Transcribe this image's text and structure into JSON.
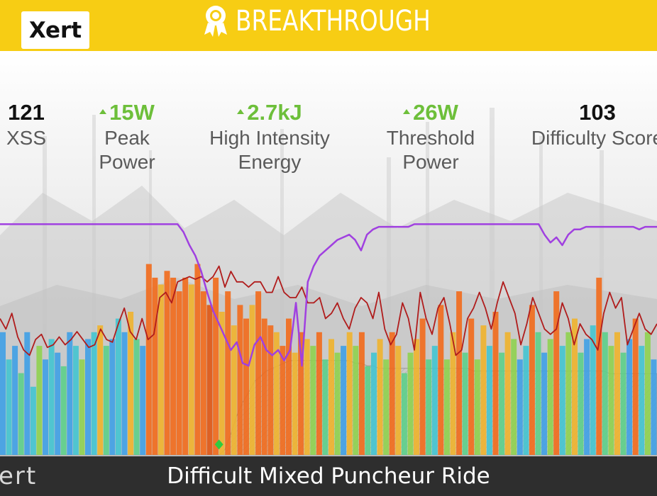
{
  "header": {
    "logo": "Xert",
    "title": "BREAKTHROUGH",
    "icon": "award-ribbon-icon",
    "colors": {
      "banner": "#f7cd14",
      "text": "#ffffff"
    }
  },
  "stats": [
    {
      "value": "121",
      "label_line1": "XSS",
      "label_line2": "",
      "trend": "none",
      "color": "#111111"
    },
    {
      "value": "15W",
      "label_line1": "Peak",
      "label_line2": "Power",
      "trend": "up",
      "color": "#6dbf3a"
    },
    {
      "value": "2.7kJ",
      "label_line1": "High Intensity",
      "label_line2": "Energy",
      "trend": "up",
      "color": "#6dbf3a"
    },
    {
      "value": "26W",
      "label_line1": "Threshold",
      "label_line2": "Power",
      "trend": "up",
      "color": "#6dbf3a"
    },
    {
      "value": "103",
      "label_line1": "Difficulty Score",
      "label_line2": "",
      "trend": "none",
      "color": "#111111"
    }
  ],
  "chart_data": {
    "type": "line",
    "series": [
      {
        "color": "#b01c1c",
        "values": [
          52,
          48,
          54,
          45,
          40,
          38,
          44,
          46,
          41,
          42,
          45,
          42,
          44,
          47,
          44,
          41,
          42,
          48,
          44,
          43,
          50,
          56,
          47,
          44,
          52,
          44,
          46,
          60,
          62,
          58,
          66,
          67,
          68,
          67,
          68,
          66,
          68,
          72,
          64,
          70,
          66,
          66,
          64,
          66,
          66,
          62,
          62,
          68,
          62,
          60,
          60,
          64,
          58,
          58,
          60,
          52,
          54,
          58,
          52,
          48,
          56,
          60,
          58,
          52,
          62,
          48,
          42,
          46,
          58,
          52,
          40,
          62,
          52,
          46,
          56,
          60,
          50,
          38,
          40,
          52,
          56,
          62,
          56,
          48,
          58,
          66,
          60,
          54,
          42,
          50,
          60,
          54,
          48,
          46,
          48,
          58,
          52,
          42,
          50,
          46,
          44,
          40,
          54,
          62,
          56,
          60,
          42,
          48,
          54,
          48,
          46,
          50
        ]
      },
      {
        "color": "#a040e0",
        "values": [
          88,
          88,
          88,
          88,
          88,
          88,
          88,
          88,
          88,
          88,
          88,
          88,
          88,
          88,
          88,
          88,
          88,
          88,
          88,
          88,
          88,
          88,
          88,
          88,
          88,
          88,
          88,
          88,
          88,
          88,
          88,
          85,
          80,
          76,
          70,
          62,
          55,
          50,
          45,
          40,
          43,
          35,
          34,
          42,
          45,
          40,
          38,
          40,
          36,
          40,
          58,
          34,
          66,
          72,
          76,
          78,
          80,
          82,
          83,
          84,
          82,
          78,
          84,
          86,
          87,
          87,
          87,
          87,
          87,
          87,
          88,
          88,
          88,
          88,
          88,
          88,
          88,
          88,
          88,
          88,
          88,
          88,
          88,
          88,
          88,
          88,
          88,
          88,
          88,
          88,
          88,
          88,
          84,
          81,
          83,
          80,
          84,
          86,
          86,
          87,
          87,
          87,
          87,
          87,
          87,
          87,
          87,
          87,
          86,
          87,
          87,
          87
        ]
      },
      {
        "color": "#8a8a8a",
        "values": [
          0,
          0,
          0,
          0,
          0,
          0,
          0,
          0,
          0,
          0,
          0,
          0,
          0,
          0,
          0,
          0,
          0,
          0,
          0,
          0,
          0,
          0,
          0,
          0,
          0,
          0,
          0,
          0,
          0,
          0,
          0,
          0,
          0,
          0,
          0,
          0,
          0,
          0,
          2,
          8,
          15,
          20,
          24,
          28,
          30,
          32,
          33,
          34,
          35,
          36,
          36,
          36,
          36,
          36,
          36,
          36,
          36,
          36,
          36,
          36,
          35,
          35,
          34,
          34,
          33,
          33,
          33,
          33,
          33,
          33,
          33,
          33,
          33,
          33,
          33,
          33,
          33,
          33,
          33,
          33,
          32,
          32,
          32,
          32,
          32,
          32,
          32,
          32,
          32,
          32,
          32,
          32,
          32,
          32,
          32,
          32,
          32,
          32,
          32,
          32,
          32,
          32,
          32,
          31,
          31,
          31,
          31,
          31,
          31,
          31,
          31,
          31
        ]
      }
    ],
    "power_bars": [
      {
        "v": 18,
        "c": "#3fa0e6"
      },
      {
        "v": 14,
        "c": "#43c4d0"
      },
      {
        "v": 16,
        "c": "#3fa0e6"
      },
      {
        "v": 12,
        "c": "#5ccf8a"
      },
      {
        "v": 18,
        "c": "#3fa0e6"
      },
      {
        "v": 10,
        "c": "#43c4d0"
      },
      {
        "v": 16,
        "c": "#8fd14f"
      },
      {
        "v": 14,
        "c": "#3fa0e6"
      },
      {
        "v": 17,
        "c": "#43c4d0"
      },
      {
        "v": 15,
        "c": "#3fa0e6"
      },
      {
        "v": 13,
        "c": "#5ccf8a"
      },
      {
        "v": 18,
        "c": "#3fa0e6"
      },
      {
        "v": 16,
        "c": "#43c4d0"
      },
      {
        "v": 14,
        "c": "#8fd14f"
      },
      {
        "v": 17,
        "c": "#3fa0e6"
      },
      {
        "v": 18,
        "c": "#43c4d0"
      },
      {
        "v": 19,
        "c": "#f0b22c"
      },
      {
        "v": 16,
        "c": "#5ccf8a"
      },
      {
        "v": 17,
        "c": "#3fa0e6"
      },
      {
        "v": 20,
        "c": "#43c4d0"
      },
      {
        "v": 18,
        "c": "#3fa0e6"
      },
      {
        "v": 21,
        "c": "#f0b22c"
      },
      {
        "v": 17,
        "c": "#5ccf8a"
      },
      {
        "v": 16,
        "c": "#3fa0e6"
      },
      {
        "v": 28,
        "c": "#f26a1b"
      },
      {
        "v": 26,
        "c": "#f26a1b"
      },
      {
        "v": 25,
        "c": "#f0b22c"
      },
      {
        "v": 27,
        "c": "#f26a1b"
      },
      {
        "v": 26,
        "c": "#f26a1b"
      },
      {
        "v": 24,
        "c": "#f26a1b"
      },
      {
        "v": 26,
        "c": "#f26a1b"
      },
      {
        "v": 25,
        "c": "#f0b22c"
      },
      {
        "v": 28,
        "c": "#f26a1b"
      },
      {
        "v": 24,
        "c": "#f26a1b"
      },
      {
        "v": 22,
        "c": "#e05512"
      },
      {
        "v": 26,
        "c": "#f26a1b"
      },
      {
        "v": 21,
        "c": "#f0b22c"
      },
      {
        "v": 24,
        "c": "#f26a1b"
      },
      {
        "v": 19,
        "c": "#f0b22c"
      },
      {
        "v": 22,
        "c": "#f26a1b"
      },
      {
        "v": 20,
        "c": "#f26a1b"
      },
      {
        "v": 22,
        "c": "#f0b22c"
      },
      {
        "v": 24,
        "c": "#f26a1b"
      },
      {
        "v": 20,
        "c": "#f26a1b"
      },
      {
        "v": 19,
        "c": "#f26a1b"
      },
      {
        "v": 18,
        "c": "#f0b22c"
      },
      {
        "v": 16,
        "c": "#f26a1b"
      },
      {
        "v": 20,
        "c": "#f26a1b"
      },
      {
        "v": 15,
        "c": "#f0b22c"
      },
      {
        "v": 18,
        "c": "#f26a1b"
      },
      {
        "v": 17,
        "c": "#f0b22c"
      },
      {
        "v": 16,
        "c": "#8fd14f"
      },
      {
        "v": 18,
        "c": "#f26a1b"
      },
      {
        "v": 14,
        "c": "#5ccf8a"
      },
      {
        "v": 17,
        "c": "#f0b22c"
      },
      {
        "v": 15,
        "c": "#8fd14f"
      },
      {
        "v": 16,
        "c": "#3fa0e6"
      },
      {
        "v": 18,
        "c": "#f0b22c"
      },
      {
        "v": 16,
        "c": "#8fd14f"
      },
      {
        "v": 18,
        "c": "#f26a1b"
      },
      {
        "v": 13,
        "c": "#5ccf8a"
      },
      {
        "v": 15,
        "c": "#43c4d0"
      },
      {
        "v": 17,
        "c": "#f0b22c"
      },
      {
        "v": 14,
        "c": "#8fd14f"
      },
      {
        "v": 18,
        "c": "#f26a1b"
      },
      {
        "v": 16,
        "c": "#f0b22c"
      },
      {
        "v": 12,
        "c": "#5ccf8a"
      },
      {
        "v": 15,
        "c": "#8fd14f"
      },
      {
        "v": 17,
        "c": "#f0b22c"
      },
      {
        "v": 20,
        "c": "#f26a1b"
      },
      {
        "v": 14,
        "c": "#5ccf8a"
      },
      {
        "v": 16,
        "c": "#43c4d0"
      },
      {
        "v": 22,
        "c": "#f26a1b"
      },
      {
        "v": 14,
        "c": "#8fd14f"
      },
      {
        "v": 18,
        "c": "#f0b22c"
      },
      {
        "v": 24,
        "c": "#f26a1b"
      },
      {
        "v": 15,
        "c": "#5ccf8a"
      },
      {
        "v": 20,
        "c": "#f26a1b"
      },
      {
        "v": 14,
        "c": "#8fd14f"
      },
      {
        "v": 19,
        "c": "#f0b22c"
      },
      {
        "v": 16,
        "c": "#43c4d0"
      },
      {
        "v": 21,
        "c": "#f26a1b"
      },
      {
        "v": 15,
        "c": "#5ccf8a"
      },
      {
        "v": 18,
        "c": "#f0b22c"
      },
      {
        "v": 17,
        "c": "#8fd14f"
      },
      {
        "v": 14,
        "c": "#3fa0e6"
      },
      {
        "v": 16,
        "c": "#43c4d0"
      },
      {
        "v": 22,
        "c": "#f26a1b"
      },
      {
        "v": 18,
        "c": "#5ccf8a"
      },
      {
        "v": 15,
        "c": "#3fa0e6"
      },
      {
        "v": 17,
        "c": "#8fd14f"
      },
      {
        "v": 24,
        "c": "#f26a1b"
      },
      {
        "v": 16,
        "c": "#43c4d0"
      },
      {
        "v": 18,
        "c": "#8fd14f"
      },
      {
        "v": 20,
        "c": "#f0b22c"
      },
      {
        "v": 15,
        "c": "#5ccf8a"
      },
      {
        "v": 17,
        "c": "#3fa0e6"
      },
      {
        "v": 19,
        "c": "#43c4d0"
      },
      {
        "v": 26,
        "c": "#f26a1b"
      },
      {
        "v": 18,
        "c": "#5ccf8a"
      },
      {
        "v": 16,
        "c": "#8fd14f"
      },
      {
        "v": 18,
        "c": "#f0b22c"
      },
      {
        "v": 15,
        "c": "#5ccf8a"
      },
      {
        "v": 17,
        "c": "#3fa0e6"
      },
      {
        "v": 20,
        "c": "#f26a1b"
      },
      {
        "v": 16,
        "c": "#43c4d0"
      },
      {
        "v": 18,
        "c": "#8fd14f"
      },
      {
        "v": 14,
        "c": "#3fa0e6"
      }
    ],
    "marker": {
      "index": 37,
      "color": "#2ecc40"
    }
  },
  "footer": {
    "logo_partial": "ert",
    "ride_title": "Difficult Mixed Puncheur Ride"
  }
}
